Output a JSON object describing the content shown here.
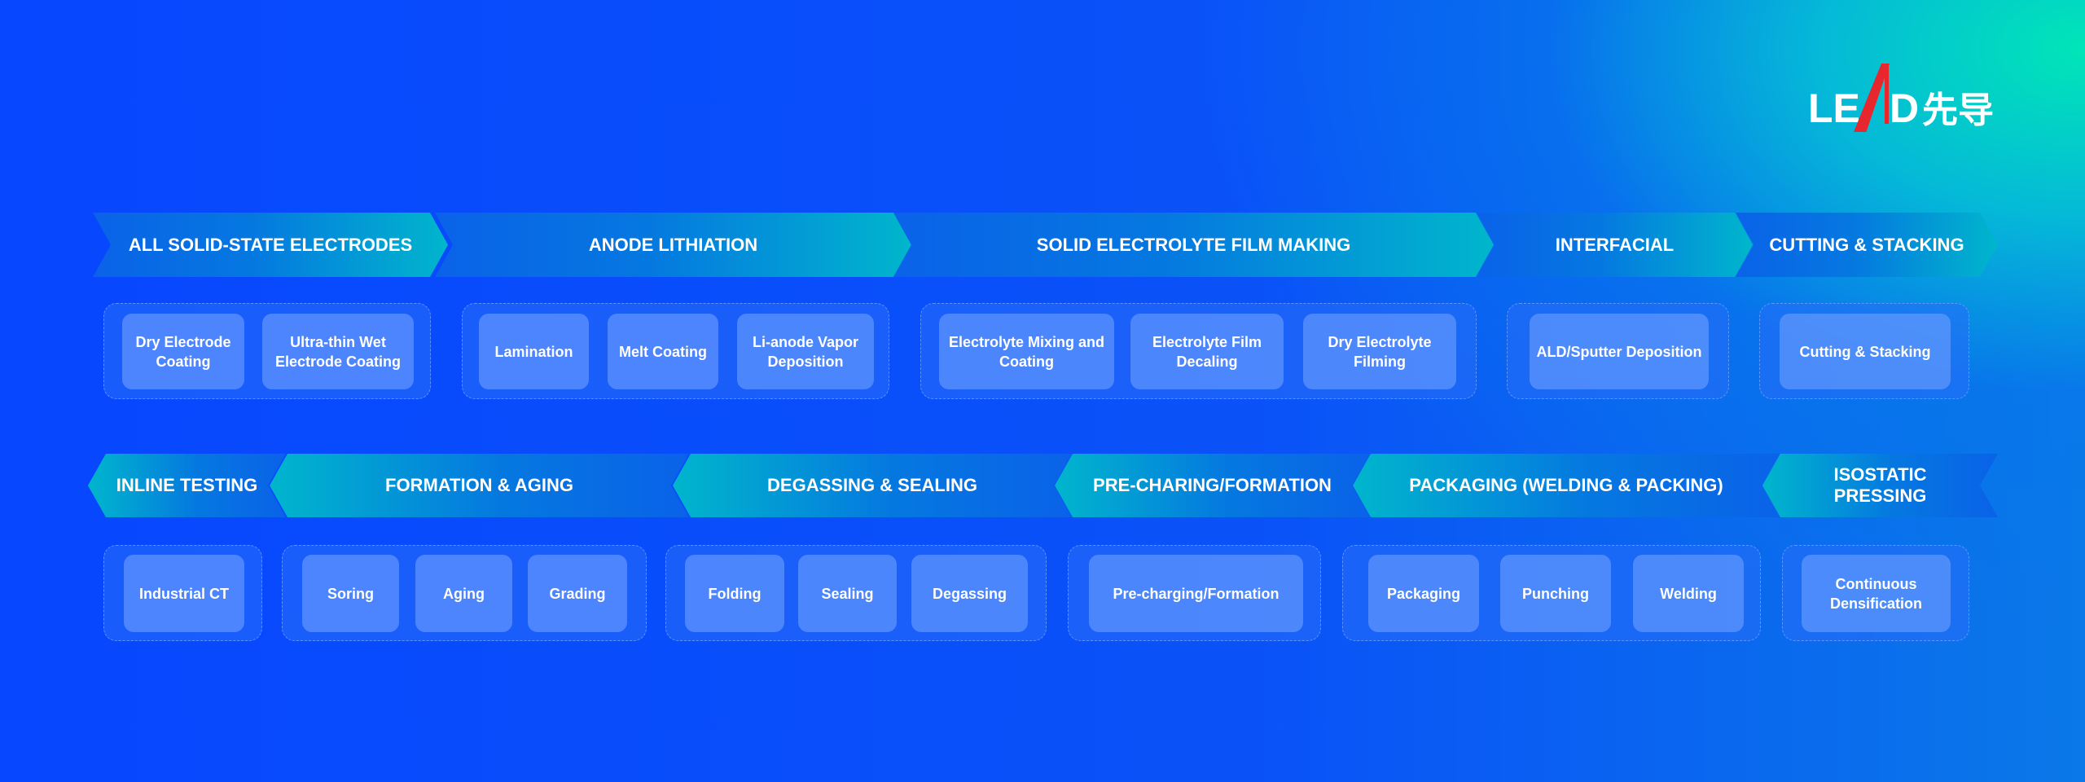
{
  "logo": {
    "text": "LEAD",
    "cn": "先导"
  },
  "row1": {
    "stages": [
      "ALL SOLID-STATE ELECTRODES",
      "ANODE LITHIATION",
      "SOLID ELECTROLYTE FILM MAKING",
      "INTERFACIAL",
      "CUTTING & STACKING"
    ],
    "steps": [
      [
        "Dry Electrode Coating",
        "Ultra-thin Wet Electrode Coating"
      ],
      [
        "Lamination",
        "Melt Coating",
        "Li-anode Vapor Deposition"
      ],
      [
        "Electrolyte Mixing and Coating",
        "Electrolyte Film Decaling",
        "Dry Electrolyte Filming"
      ],
      [
        "ALD/Sputter Deposition"
      ],
      [
        "Cutting & Stacking"
      ]
    ]
  },
  "row2": {
    "stages": [
      "INLINE TESTING",
      "FORMATION & AGING",
      "DEGASSING & SEALING",
      "PRE-CHARING/FORMATION",
      "PACKAGING (WELDING & PACKING)",
      "ISOSTATIC PRESSING"
    ],
    "steps": [
      [
        "Industrial CT"
      ],
      [
        "Soring",
        "Aging",
        "Grading"
      ],
      [
        "Folding",
        "Sealing",
        "Degassing"
      ],
      [
        "Pre-charging/Formation"
      ],
      [
        "Packaging",
        "Punching",
        "Welding"
      ],
      [
        "Continuous Densification"
      ]
    ]
  }
}
